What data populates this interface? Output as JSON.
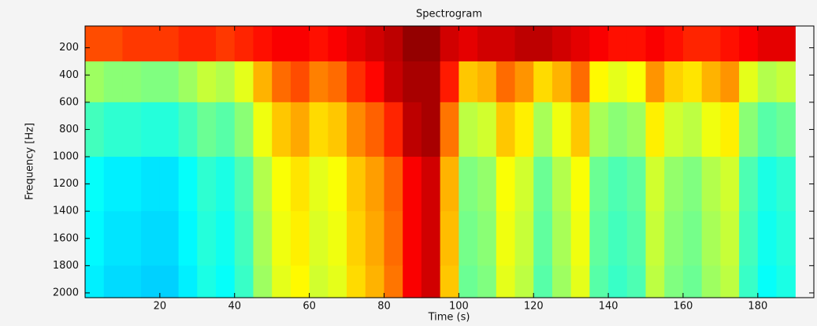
{
  "chart_data": {
    "type": "heatmap",
    "title": "Spectrogram",
    "x_label": "Time (s)",
    "y_label": "Frequency [Hz]",
    "colormap": "jet",
    "zlim": [
      0,
      1
    ],
    "y_inverted": true,
    "xlim": [
      0,
      195
    ],
    "ylim": [
      40,
      2035
    ],
    "xticks": [
      20,
      40,
      60,
      80,
      100,
      120,
      140,
      160,
      180
    ],
    "yticks": [
      200,
      400,
      600,
      800,
      1000,
      1200,
      1400,
      1600,
      1800,
      2000
    ],
    "x_edges": [
      0,
      5,
      10,
      15,
      20,
      25,
      30,
      35,
      40,
      45,
      50,
      55,
      60,
      65,
      70,
      75,
      80,
      85,
      90,
      95,
      100,
      105,
      110,
      115,
      120,
      125,
      130,
      135,
      140,
      145,
      150,
      155,
      160,
      165,
      170,
      175,
      180,
      185,
      190
    ],
    "y_edges": [
      40,
      300,
      600,
      1000,
      1400,
      1800,
      2035
    ],
    "z": [
      [
        0.8,
        0.8,
        0.82,
        0.82,
        0.82,
        0.84,
        0.84,
        0.82,
        0.84,
        0.86,
        0.88,
        0.88,
        0.86,
        0.88,
        0.9,
        0.92,
        0.94,
        0.98,
        0.98,
        0.92,
        0.9,
        0.92,
        0.92,
        0.94,
        0.94,
        0.92,
        0.9,
        0.88,
        0.86,
        0.86,
        0.88,
        0.86,
        0.84,
        0.84,
        0.86,
        0.88,
        0.9,
        0.9
      ],
      [
        0.53,
        0.51,
        0.51,
        0.5,
        0.5,
        0.53,
        0.57,
        0.55,
        0.6,
        0.7,
        0.77,
        0.8,
        0.75,
        0.77,
        0.83,
        0.87,
        0.93,
        0.96,
        0.96,
        0.85,
        0.68,
        0.7,
        0.77,
        0.73,
        0.66,
        0.7,
        0.77,
        0.63,
        0.6,
        0.62,
        0.73,
        0.67,
        0.65,
        0.7,
        0.73,
        0.6,
        0.55,
        0.57
      ],
      [
        0.44,
        0.42,
        0.42,
        0.41,
        0.41,
        0.44,
        0.48,
        0.46,
        0.51,
        0.61,
        0.68,
        0.71,
        0.66,
        0.68,
        0.74,
        0.78,
        0.84,
        0.94,
        0.96,
        0.76,
        0.56,
        0.58,
        0.68,
        0.64,
        0.54,
        0.61,
        0.68,
        0.54,
        0.51,
        0.53,
        0.64,
        0.58,
        0.56,
        0.61,
        0.64,
        0.51,
        0.46,
        0.48
      ],
      [
        0.38,
        0.36,
        0.36,
        0.35,
        0.35,
        0.38,
        0.42,
        0.4,
        0.45,
        0.55,
        0.62,
        0.65,
        0.6,
        0.62,
        0.68,
        0.72,
        0.78,
        0.88,
        0.92,
        0.7,
        0.5,
        0.52,
        0.62,
        0.58,
        0.48,
        0.55,
        0.62,
        0.48,
        0.45,
        0.47,
        0.58,
        0.52,
        0.5,
        0.55,
        0.58,
        0.45,
        0.4,
        0.42
      ],
      [
        0.37,
        0.35,
        0.35,
        0.34,
        0.34,
        0.37,
        0.41,
        0.39,
        0.44,
        0.54,
        0.61,
        0.64,
        0.59,
        0.61,
        0.67,
        0.71,
        0.77,
        0.88,
        0.92,
        0.69,
        0.49,
        0.51,
        0.61,
        0.57,
        0.47,
        0.54,
        0.61,
        0.47,
        0.44,
        0.46,
        0.57,
        0.51,
        0.49,
        0.54,
        0.57,
        0.44,
        0.39,
        0.41
      ],
      [
        0.36,
        0.34,
        0.34,
        0.33,
        0.33,
        0.36,
        0.4,
        0.38,
        0.43,
        0.53,
        0.6,
        0.63,
        0.58,
        0.6,
        0.66,
        0.7,
        0.76,
        0.88,
        0.92,
        0.68,
        0.48,
        0.5,
        0.6,
        0.56,
        0.46,
        0.53,
        0.6,
        0.46,
        0.43,
        0.45,
        0.56,
        0.5,
        0.48,
        0.53,
        0.56,
        0.43,
        0.38,
        0.4
      ]
    ]
  }
}
